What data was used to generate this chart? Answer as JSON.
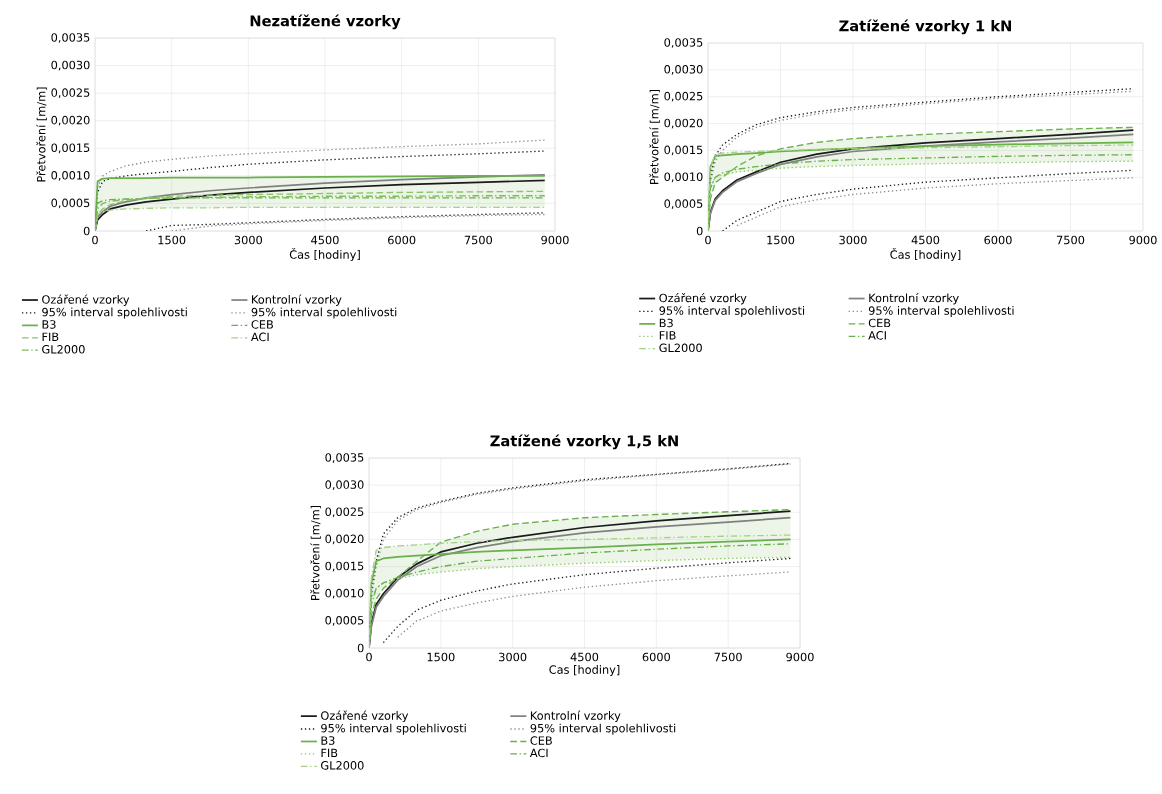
{
  "chart_data": [
    {
      "type": "line",
      "title": "Nezatížené vzorky",
      "xlabel": "Čas [hodiny]",
      "ylabel": "Přetvoření [m/m]",
      "xlim": [
        0,
        9000
      ],
      "ylim": [
        0,
        0.0035
      ],
      "xticks": [
        0,
        1500,
        3000,
        4500,
        6000,
        7500,
        9000
      ],
      "yticks": [
        0,
        {
          "value": 0.0005,
          "label": "0,0005"
        },
        {
          "value": 0.001,
          "label": "0,0010"
        },
        {
          "value": 0.0015,
          "label": "0,0015"
        },
        {
          "value": 0.002,
          "label": "0,0020"
        },
        {
          "value": 0.0025,
          "label": "0,0025"
        },
        {
          "value": 0.003,
          "label": "0,0030"
        },
        {
          "value": 0.0035,
          "label": "0,0035"
        }
      ],
      "grid": true,
      "legend": "bottom",
      "x": [
        0,
        50,
        150,
        300,
        600,
        1000,
        1500,
        2250,
        3000,
        4500,
        6000,
        7500,
        8800
      ],
      "series": [
        {
          "name": "Ozářené vzorky",
          "color": "#1a1a1a",
          "line_style": "solid",
          "values": [
            0,
            0.0002,
            0.0003,
            0.0004,
            0.00047,
            0.00053,
            0.00058,
            0.00065,
            0.0007,
            0.00078,
            0.00084,
            0.00088,
            0.00092
          ]
        },
        {
          "name": "Kontrolní vzorky",
          "color": "#808080",
          "line_style": "solid",
          "values": [
            0,
            0.00025,
            0.00035,
            0.00045,
            0.00053,
            0.0006,
            0.00066,
            0.00073,
            0.00078,
            0.00087,
            0.00093,
            0.00098,
            0.00102
          ]
        },
        {
          "name": "95% interval spolehlivosti",
          "color": "#1a1a1a",
          "line_style": "dotted",
          "values": [
            0,
            0.0007,
            0.0009,
            0.00095,
            0.001,
            0.00104,
            0.00108,
            0.00115,
            0.00121,
            0.00129,
            0.00135,
            0.0014,
            0.00145
          ]
        },
        {
          "name": "95% interval spolehlivosti",
          "color": "#8c8c8c",
          "line_style": "dotted",
          "values": [
            0,
            0.0008,
            0.001,
            0.00108,
            0.00118,
            0.00125,
            0.0013,
            0.00136,
            0.0014,
            0.00147,
            0.00153,
            0.00158,
            0.00165
          ]
        },
        {
          "name": "B3",
          "color": "#6ab04c",
          "line_style": "solid",
          "values": [
            0,
            0.0009,
            0.00095,
            0.00096,
            0.00096,
            0.00096,
            0.00097,
            0.00097,
            0.00097,
            0.00098,
            0.00099,
            0.001,
            0.001
          ],
          "lower": [
            0,
            0.0003,
            0.00035,
            0.00038,
            0.0004,
            0.00041,
            0.00042,
            0.00042,
            0.00043,
            0.00043,
            0.00043,
            0.00043,
            0.00043
          ],
          "upper": [
            0,
            0.0009,
            0.00095,
            0.00096,
            0.00096,
            0.00096,
            0.00097,
            0.00097,
            0.00097,
            0.00098,
            0.00099,
            0.001,
            0.001
          ]
        },
        {
          "name": "CEB",
          "color": "#6ab04c",
          "line_style": "dashdot",
          "values": [
            0,
            0.0005,
            0.00055,
            0.00057,
            0.00058,
            0.00059,
            0.0006,
            0.0006,
            0.0006,
            0.0006,
            0.0006,
            0.0006,
            0.0006
          ]
        },
        {
          "name": "FIB",
          "color": "#8cc56a",
          "line_style": "dashed",
          "values": [
            0,
            0.0003,
            0.0004,
            0.00048,
            0.00055,
            0.0006,
            0.00063,
            0.00065,
            0.00066,
            0.00068,
            0.0007,
            0.00071,
            0.00072
          ]
        },
        {
          "name": "ACI",
          "color": "#a5d28a",
          "line_style": "dashdot",
          "values": [
            0,
            0.0003,
            0.00035,
            0.00038,
            0.0004,
            0.00041,
            0.00042,
            0.00042,
            0.00043,
            0.00043,
            0.00043,
            0.00043,
            0.00043
          ]
        },
        {
          "name": "GL2000",
          "color": "#7dbb5a",
          "line_style": "dashdot",
          "values": [
            0,
            0.0004,
            0.0005,
            0.00054,
            0.00057,
            0.00059,
            0.0006,
            0.00061,
            0.00062,
            0.00063,
            0.00063,
            0.00064,
            0.00064
          ]
        },
        {
          "color": "#1a1a1a",
          "line_style": "dotted",
          "values": [
            null,
            null,
            null,
            null,
            null,
            0,
            0.0001,
            0.00012,
            0.00015,
            0.00021,
            0.00026,
            0.0003,
            0.00033
          ]
        },
        {
          "color": "#8c8c8c",
          "line_style": "dotted",
          "values": [
            null,
            null,
            null,
            null,
            null,
            null,
            0,
            9e-05,
            0.00013,
            0.00019,
            0.00024,
            0.00028,
            0.0003
          ]
        }
      ]
    },
    {
      "type": "line",
      "title": "Zatížené vzorky 1 kN",
      "xlabel": "Čas [hodiny]",
      "ylabel": "Přetvoření [m/m]",
      "xlim": [
        0,
        9000
      ],
      "ylim": [
        0,
        0.0035
      ],
      "xticks": [
        0,
        1500,
        3000,
        4500,
        6000,
        7500,
        9000
      ],
      "yticks": [
        0,
        {
          "value": 0.0005,
          "label": "0,0005"
        },
        {
          "value": 0.001,
          "label": "0,0010"
        },
        {
          "value": 0.0015,
          "label": "0,0015"
        },
        {
          "value": 0.002,
          "label": "0,0020"
        },
        {
          "value": 0.0025,
          "label": "0,0025"
        },
        {
          "value": 0.003,
          "label": "0,0030"
        },
        {
          "value": 0.0035,
          "label": "0,0035"
        }
      ],
      "grid": true,
      "legend": "bottom",
      "x": [
        0,
        50,
        150,
        300,
        600,
        1000,
        1500,
        2250,
        3000,
        4500,
        6000,
        7500,
        8800
      ],
      "series": [
        {
          "name": "Ozářené vzorky",
          "color": "#1a1a1a",
          "line_style": "solid",
          "values": [
            0,
            0.00035,
            0.0006,
            0.00075,
            0.00095,
            0.0011,
            0.00128,
            0.00143,
            0.00153,
            0.00164,
            0.00172,
            0.0018,
            0.00188
          ]
        },
        {
          "name": "Kontrolní vzorky",
          "color": "#808080",
          "line_style": "solid",
          "values": [
            0,
            0.00033,
            0.00057,
            0.00072,
            0.00092,
            0.00107,
            0.00124,
            0.00138,
            0.00148,
            0.00158,
            0.00166,
            0.00173,
            0.0018
          ]
        },
        {
          "name": "95% interval spolehlivosti",
          "color": "#1a1a1a",
          "line_style": "dotted",
          "values": [
            0,
            0.001,
            0.0014,
            0.0016,
            0.0018,
            0.00198,
            0.00211,
            0.00222,
            0.0023,
            0.0024,
            0.0025,
            0.00258,
            0.00265
          ]
        },
        {
          "name": "95% interval spolehlivosti",
          "color": "#8c8c8c",
          "line_style": "dotted",
          "values": [
            0,
            0.0009,
            0.0013,
            0.0015,
            0.00175,
            0.00193,
            0.00206,
            0.00218,
            0.00226,
            0.00237,
            0.00247,
            0.00254,
            0.0026
          ]
        },
        {
          "name": "B3",
          "color": "#6ab04c",
          "line_style": "solid",
          "values": [
            0,
            0.0012,
            0.0014,
            0.00141,
            0.00143,
            0.00145,
            0.00148,
            0.00151,
            0.00154,
            0.00158,
            0.00161,
            0.00163,
            0.00165
          ],
          "lower": [
            0,
            0.0006,
            0.0009,
            0.001,
            0.0011,
            0.00113,
            0.00117,
            0.0012,
            0.00122,
            0.00125,
            0.00127,
            0.00129,
            0.0013
          ],
          "upper": [
            0,
            0.0012,
            0.00142,
            0.00145,
            0.00147,
            0.00148,
            0.00153,
            0.00165,
            0.00172,
            0.0018,
            0.00185,
            0.0019,
            0.00193
          ]
        },
        {
          "name": "CEB",
          "color": "#6ab04c",
          "line_style": "dashed",
          "values": [
            0,
            0.0006,
            0.0009,
            0.001,
            0.0012,
            0.0014,
            0.00153,
            0.00165,
            0.00172,
            0.0018,
            0.00185,
            0.0019,
            0.00193
          ]
        },
        {
          "name": "FIB",
          "color": "#8cc56a",
          "line_style": "dotted",
          "values": [
            0,
            0.0008,
            0.001,
            0.00105,
            0.0011,
            0.00113,
            0.00117,
            0.0012,
            0.00122,
            0.00125,
            0.00127,
            0.00129,
            0.0013
          ]
        },
        {
          "name": "ACI",
          "color": "#6ab04c",
          "line_style": "dashdot",
          "values": [
            0,
            0.0008,
            0.001,
            0.00108,
            0.00115,
            0.0012,
            0.00125,
            0.0013,
            0.00133,
            0.00136,
            0.00139,
            0.00141,
            0.00142
          ]
        },
        {
          "name": "GL2000",
          "color": "#a5d28a",
          "line_style": "dashdot",
          "values": [
            0,
            0.0012,
            0.00142,
            0.00145,
            0.00147,
            0.00148,
            0.0015,
            0.00152,
            0.00153,
            0.00155,
            0.00157,
            0.00159,
            0.0016
          ]
        },
        {
          "color": "#1a1a1a",
          "line_style": "dotted",
          "values": [
            null,
            null,
            null,
            0,
            0.0002,
            0.00035,
            0.00055,
            0.00068,
            0.00078,
            0.00091,
            0.00099,
            0.00107,
            0.00113
          ]
        },
        {
          "color": "#8c8c8c",
          "line_style": "dotted",
          "values": [
            null,
            null,
            null,
            null,
            0.0001,
            0.00026,
            0.00045,
            0.00058,
            0.00068,
            0.0008,
            0.00088,
            0.00094,
            0.00099
          ]
        }
      ]
    },
    {
      "type": "line",
      "title": "Zatížené vzorky 1,5 kN",
      "xlabel": "Cas [hodiny]",
      "ylabel": "Přetvoření [m/m]",
      "xlim": [
        0,
        9000
      ],
      "ylim": [
        0,
        0.0035
      ],
      "xticks": [
        0,
        1500,
        3000,
        4500,
        6000,
        7500,
        9000
      ],
      "yticks": [
        0,
        {
          "value": 0.0005,
          "label": "0,0005"
        },
        {
          "value": 0.001,
          "label": "0,0010"
        },
        {
          "value": 0.0015,
          "label": "0,0015"
        },
        {
          "value": 0.002,
          "label": "0,0020"
        },
        {
          "value": 0.0025,
          "label": "0,0025"
        },
        {
          "value": 0.003,
          "label": "0,0030"
        },
        {
          "value": 0.0035,
          "label": "0,0035"
        }
      ],
      "grid": true,
      "legend": "bottom",
      "x": [
        0,
        50,
        150,
        300,
        600,
        1000,
        1500,
        2250,
        3000,
        4500,
        6000,
        7500,
        8800
      ],
      "series": [
        {
          "name": "Ozářené vzorky",
          "color": "#1a1a1a",
          "line_style": "solid",
          "values": [
            0,
            0.00045,
            0.0008,
            0.001,
            0.0013,
            0.00155,
            0.00177,
            0.00193,
            0.00204,
            0.00222,
            0.00234,
            0.00244,
            0.00252
          ]
        },
        {
          "name": "Kontrolní vzorky",
          "color": "#808080",
          "line_style": "solid",
          "values": [
            0,
            0.0004,
            0.00075,
            0.00095,
            0.00125,
            0.0015,
            0.0017,
            0.00185,
            0.00196,
            0.00212,
            0.00223,
            0.00232,
            0.0024
          ]
        },
        {
          "name": "95% interval spolehlivosti",
          "color": "#1a1a1a",
          "line_style": "dotted",
          "values": [
            0,
            0.001,
            0.0016,
            0.0021,
            0.0024,
            0.00258,
            0.0027,
            0.00285,
            0.00295,
            0.0031,
            0.0032,
            0.0033,
            0.0034
          ]
        },
        {
          "name": "95% interval spolehlivosti",
          "color": "#8c8c8c",
          "line_style": "dotted",
          "values": [
            0,
            0.0009,
            0.0015,
            0.002,
            0.00235,
            0.00255,
            0.00268,
            0.00283,
            0.00293,
            0.00308,
            0.00319,
            0.00329,
            0.00339
          ]
        },
        {
          "name": "B3",
          "color": "#6ab04c",
          "line_style": "solid",
          "values": [
            0,
            0.0012,
            0.0016,
            0.00165,
            0.00168,
            0.0017,
            0.00173,
            0.00177,
            0.0018,
            0.00185,
            0.00191,
            0.00196,
            0.002
          ],
          "lower": [
            0,
            0.0006,
            0.0009,
            0.0011,
            0.00128,
            0.00135,
            0.0014,
            0.00146,
            0.0015,
            0.00156,
            0.00161,
            0.00165,
            0.00167
          ],
          "upper": [
            0,
            0.0013,
            0.0018,
            0.00185,
            0.00188,
            0.0019,
            0.00195,
            0.00215,
            0.00228,
            0.0024,
            0.00246,
            0.00251,
            0.00255
          ]
        },
        {
          "name": "CEB",
          "color": "#6ab04c",
          "line_style": "dashed",
          "values": [
            0,
            0.0006,
            0.0009,
            0.0011,
            0.0013,
            0.0016,
            0.00195,
            0.00215,
            0.00228,
            0.0024,
            0.00246,
            0.00251,
            0.00255
          ]
        },
        {
          "name": "FIB",
          "color": "#8cc56a",
          "line_style": "dotted",
          "values": [
            0,
            0.0009,
            0.0011,
            0.0012,
            0.00128,
            0.00135,
            0.0014,
            0.00146,
            0.0015,
            0.00156,
            0.00161,
            0.00165,
            0.00167
          ]
        },
        {
          "name": "ACI",
          "color": "#6ab04c",
          "line_style": "dashdot",
          "values": [
            0,
            0.0008,
            0.0011,
            0.0012,
            0.0013,
            0.0014,
            0.0015,
            0.0016,
            0.00165,
            0.00175,
            0.00182,
            0.00188,
            0.00192
          ]
        },
        {
          "name": "GL2000",
          "color": "#a5d28a",
          "line_style": "dashdot",
          "values": [
            0,
            0.0013,
            0.0018,
            0.00185,
            0.00188,
            0.0019,
            0.00193,
            0.00196,
            0.00198,
            0.002,
            0.00203,
            0.00206,
            0.00208
          ]
        },
        {
          "color": "#1a1a1a",
          "line_style": "dotted",
          "values": [
            null,
            null,
            null,
            0.0001,
            0.0004,
            0.0007,
            0.00088,
            0.00105,
            0.00118,
            0.00135,
            0.00147,
            0.00157,
            0.00165
          ]
        },
        {
          "color": "#8c8c8c",
          "line_style": "dotted",
          "values": [
            null,
            null,
            null,
            null,
            0.0002,
            0.0005,
            0.00068,
            0.00083,
            0.00095,
            0.00112,
            0.00124,
            0.00133,
            0.0014
          ]
        }
      ]
    }
  ]
}
